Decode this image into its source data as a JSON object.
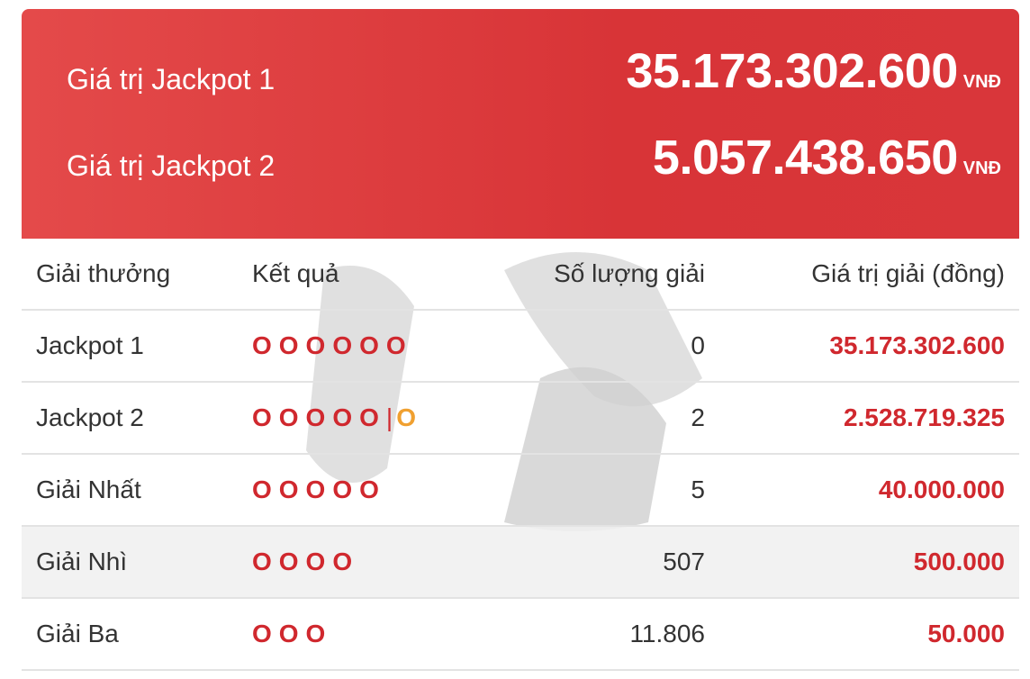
{
  "header": {
    "jackpots": [
      {
        "label": "Giá trị Jackpot 1",
        "value": "35.173.302.600",
        "unit": "VNĐ"
      },
      {
        "label": "Giá trị Jackpot 2",
        "value": "5.057.438.650",
        "unit": "VNĐ"
      }
    ]
  },
  "table": {
    "columns": [
      "Giải thưởng",
      "Kết quả",
      "Số lượng giải",
      "Giá trị giải (đồng)"
    ],
    "rows": [
      {
        "prize": "Jackpot 1",
        "result": "OOOOOO",
        "count": "0",
        "value": "35.173.302.600"
      },
      {
        "prize": "Jackpot 2",
        "result": "OOOOO",
        "separator": "|",
        "extra": "O",
        "count": "2",
        "value": "2.528.719.325"
      },
      {
        "prize": "Giải Nhất",
        "result": "OOOOO",
        "count": "5",
        "value": "40.000.000"
      },
      {
        "prize": "Giải Nhì",
        "result": "OOOO",
        "count": "507",
        "value": "500.000"
      },
      {
        "prize": "Giải Ba",
        "result": "OOO",
        "count": "11.806",
        "value": "50.000"
      }
    ]
  }
}
